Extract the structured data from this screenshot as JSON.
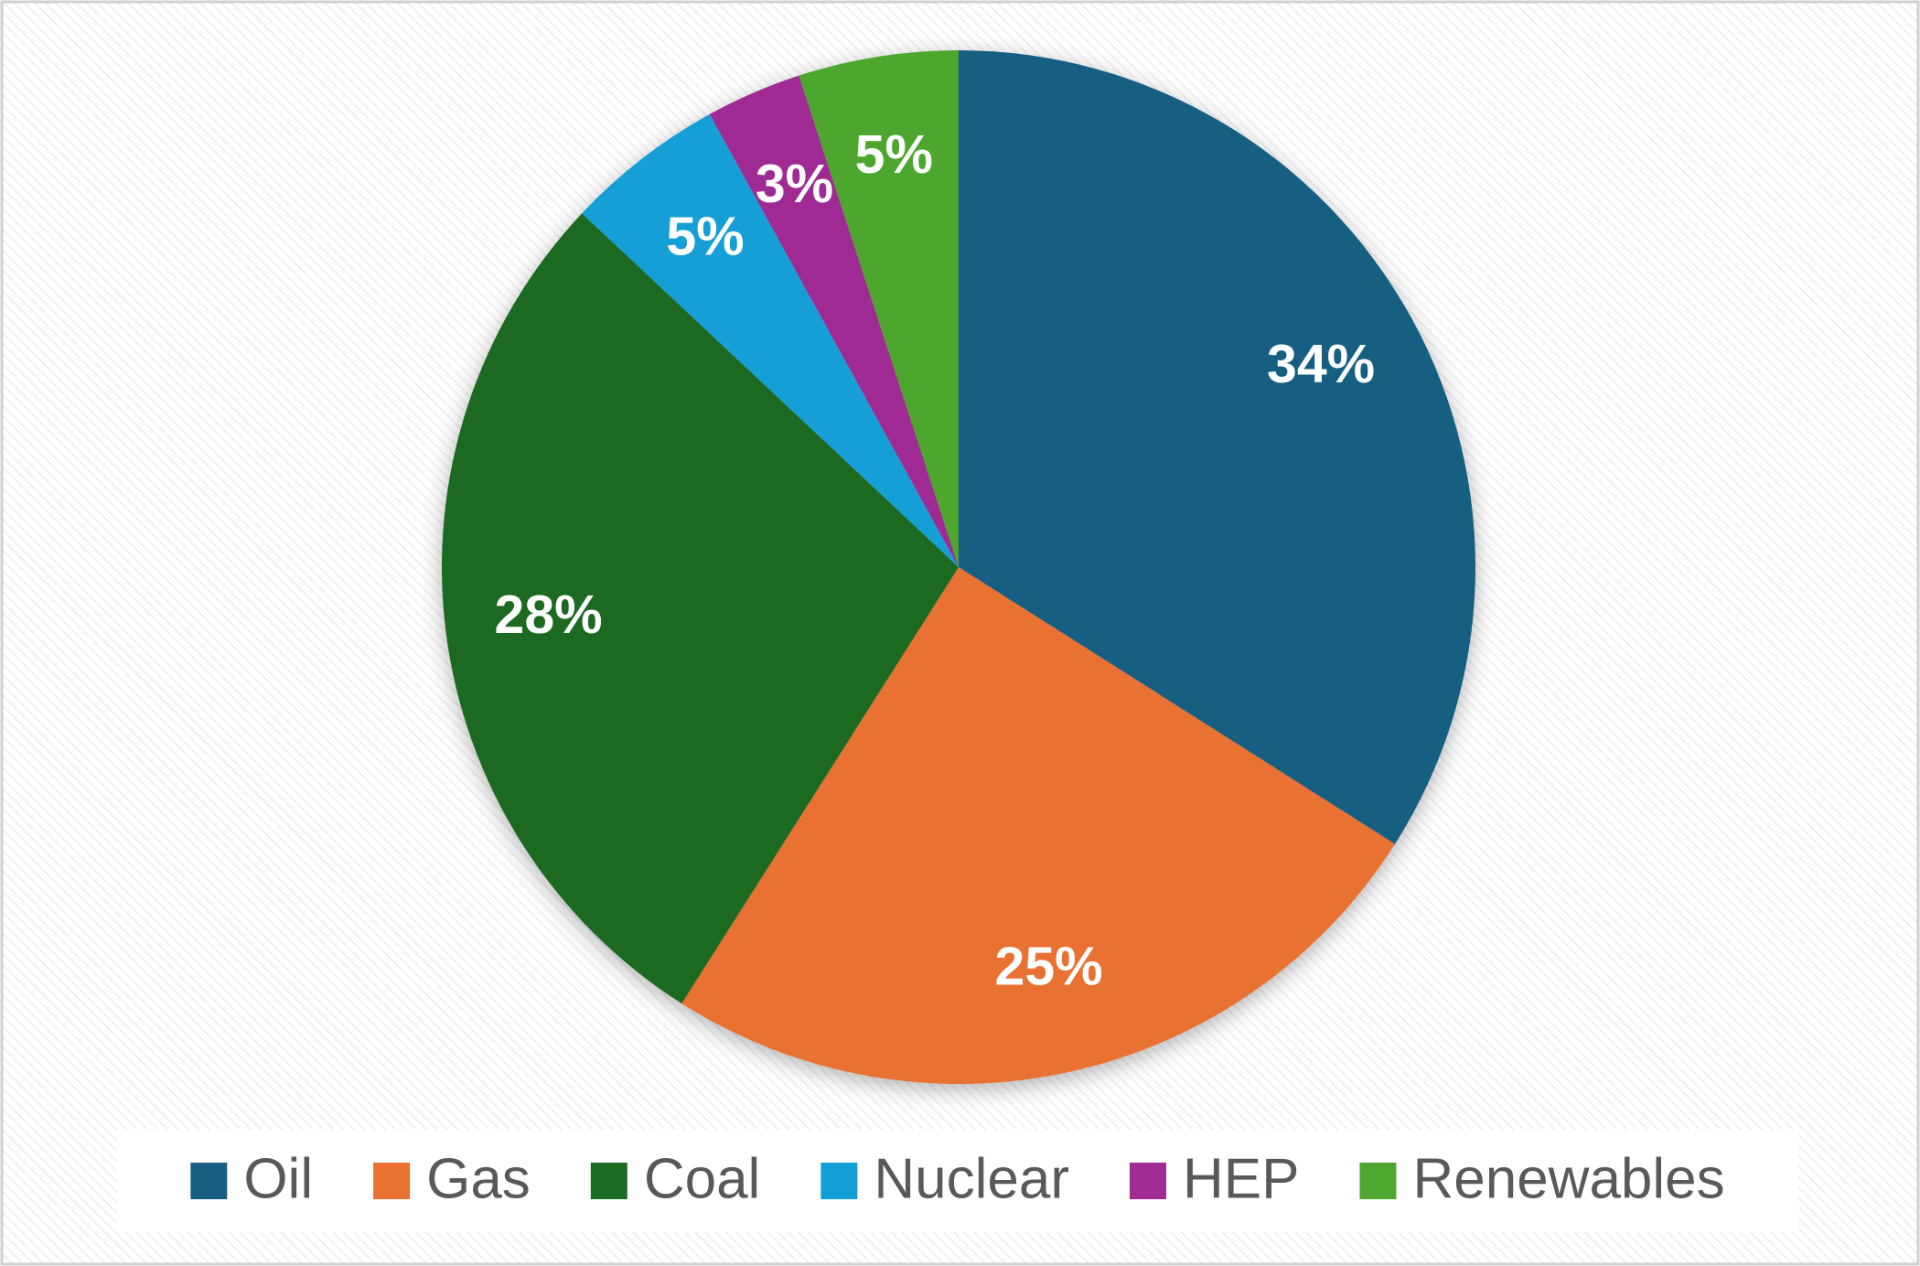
{
  "chart_data": {
    "type": "pie",
    "categories": [
      "Oil",
      "Gas",
      "Coal",
      "Nuclear",
      "HEP",
      "Renewables"
    ],
    "values": [
      34,
      25,
      28,
      5,
      3,
      5
    ],
    "value_labels": [
      "34%",
      "25%",
      "28%",
      "5%",
      "3%",
      "5%"
    ],
    "colors": [
      "#175e82",
      "#e97132",
      "#1b6b24",
      "#139fd6",
      "#a02b93",
      "#4ea72e"
    ],
    "legend": "bottom"
  }
}
